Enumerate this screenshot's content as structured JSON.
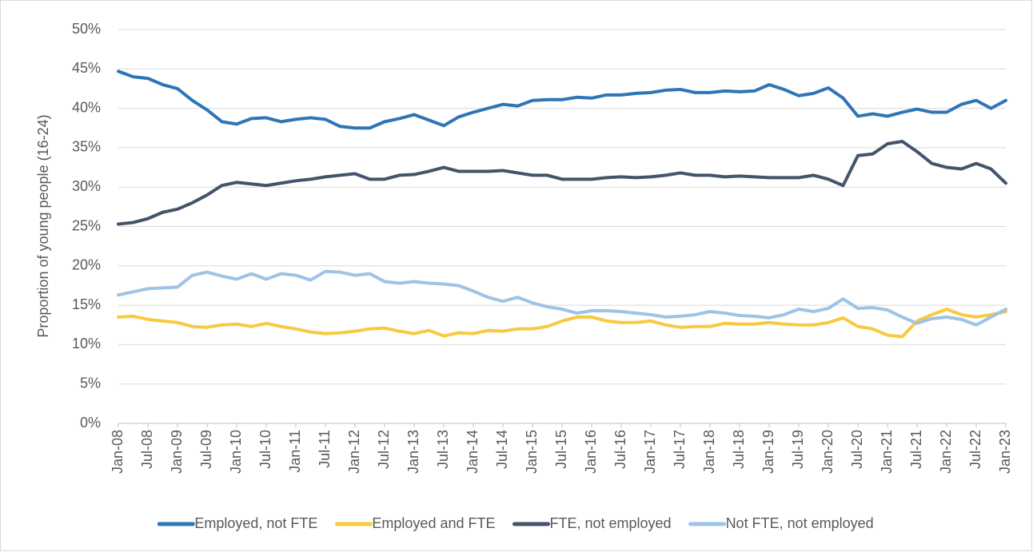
{
  "chart_data": {
    "type": "line",
    "ylabel": "Proportion of young people (16-24)",
    "categories": [
      "Jan-08",
      null,
      "Jul-08",
      null,
      "Jan-09",
      null,
      "Jul-09",
      null,
      "Jan-10",
      null,
      "Jul-10",
      null,
      "Jan-11",
      null,
      "Jul-11",
      null,
      "Jan-12",
      null,
      "Jul-12",
      null,
      "Jan-13",
      null,
      "Jul-13",
      null,
      "Jan-14",
      null,
      "Jul-14",
      null,
      "Jan-15",
      null,
      "Jul-15",
      null,
      "Jan-16",
      null,
      "Jul-16",
      null,
      "Jan-17",
      null,
      "Jul-17",
      null,
      "Jan-18",
      null,
      "Jul-18",
      null,
      "Jan-19",
      null,
      "Jul-19",
      null,
      "Jan-20",
      null,
      "Jul-20",
      null,
      "Jan-21",
      null,
      "Jul-21",
      null,
      "Jan-22",
      null,
      "Jul-22",
      null,
      "Jan-23"
    ],
    "series": [
      {
        "name": "Employed, not FTE",
        "color": "#2e75b6",
        "values": [
          44.7,
          44.0,
          43.8,
          43.0,
          42.5,
          41.0,
          39.8,
          38.3,
          38.0,
          38.7,
          38.8,
          38.3,
          38.6,
          38.8,
          38.6,
          37.7,
          37.5,
          37.5,
          38.3,
          38.7,
          39.2,
          38.5,
          37.8,
          38.9,
          39.5,
          40.0,
          40.5,
          40.3,
          41.0,
          41.1,
          41.1,
          41.4,
          41.3,
          41.7,
          41.7,
          41.9,
          42.0,
          42.3,
          42.4,
          42.0,
          42.0,
          42.2,
          42.1,
          42.2,
          43.0,
          42.4,
          41.6,
          41.9,
          42.6,
          41.3,
          39.0,
          39.3,
          39.0,
          39.5,
          39.9,
          39.5,
          39.5,
          40.5,
          41.0,
          40.0,
          41.0
        ]
      },
      {
        "name": "Employed and FTE",
        "color": "#f9c940",
        "values": [
          13.5,
          13.6,
          13.2,
          13.0,
          12.8,
          12.3,
          12.2,
          12.5,
          12.6,
          12.3,
          12.7,
          12.3,
          12.0,
          11.6,
          11.4,
          11.5,
          11.7,
          12.0,
          12.1,
          11.7,
          11.4,
          11.8,
          11.1,
          11.5,
          11.4,
          11.8,
          11.7,
          12.0,
          12.0,
          12.3,
          13.0,
          13.5,
          13.5,
          13.0,
          12.8,
          12.8,
          13.0,
          12.5,
          12.2,
          12.3,
          12.3,
          12.7,
          12.6,
          12.6,
          12.8,
          12.6,
          12.5,
          12.5,
          12.8,
          13.4,
          12.3,
          12.0,
          11.2,
          11.0,
          13.0,
          13.8,
          14.5,
          13.8,
          13.5,
          13.8,
          14.2
        ]
      },
      {
        "name": "FTE, not employed",
        "color": "#44546a",
        "values": [
          25.3,
          25.5,
          26.0,
          26.8,
          27.2,
          28.0,
          29.0,
          30.2,
          30.6,
          30.4,
          30.2,
          30.5,
          30.8,
          31.0,
          31.3,
          31.5,
          31.7,
          31.0,
          31.0,
          31.5,
          31.6,
          32.0,
          32.5,
          32.0,
          32.0,
          32.0,
          32.1,
          31.8,
          31.5,
          31.5,
          31.0,
          31.0,
          31.0,
          31.2,
          31.3,
          31.2,
          31.3,
          31.5,
          31.8,
          31.5,
          31.5,
          31.3,
          31.4,
          31.3,
          31.2,
          31.2,
          31.2,
          31.5,
          31.0,
          30.2,
          34.0,
          34.2,
          35.5,
          35.8,
          34.5,
          33.0,
          32.5,
          32.3,
          33.0,
          32.3,
          30.5
        ]
      },
      {
        "name": "Not FTE, not employed",
        "color": "#9dc3e6",
        "values": [
          16.3,
          16.7,
          17.1,
          17.2,
          17.3,
          18.8,
          19.2,
          18.7,
          18.3,
          19.0,
          18.3,
          19.0,
          18.8,
          18.2,
          19.3,
          19.2,
          18.8,
          19.0,
          18.0,
          17.8,
          18.0,
          17.8,
          17.7,
          17.5,
          16.8,
          16.0,
          15.5,
          16.0,
          15.3,
          14.8,
          14.5,
          14.0,
          14.3,
          14.3,
          14.2,
          14.0,
          13.8,
          13.5,
          13.6,
          13.8,
          14.2,
          14.0,
          13.7,
          13.6,
          13.4,
          13.8,
          14.5,
          14.2,
          14.6,
          15.8,
          14.6,
          14.7,
          14.4,
          13.5,
          12.7,
          13.3,
          13.5,
          13.2,
          12.5,
          13.5,
          14.5
        ]
      }
    ],
    "ylim": [
      0,
      50
    ],
    "yticks": [
      {
        "value": 0,
        "label": "0%"
      },
      {
        "value": 5,
        "label": "5%"
      },
      {
        "value": 10,
        "label": "10%"
      },
      {
        "value": 15,
        "label": "15%"
      },
      {
        "value": 20,
        "label": "20%"
      },
      {
        "value": 25,
        "label": "25%"
      },
      {
        "value": 30,
        "label": "30%"
      },
      {
        "value": 35,
        "label": "35%"
      },
      {
        "value": 40,
        "label": "40%"
      },
      {
        "value": 45,
        "label": "45%"
      },
      {
        "value": 50,
        "label": "50%"
      }
    ],
    "grid": true,
    "legend": "bottom"
  }
}
